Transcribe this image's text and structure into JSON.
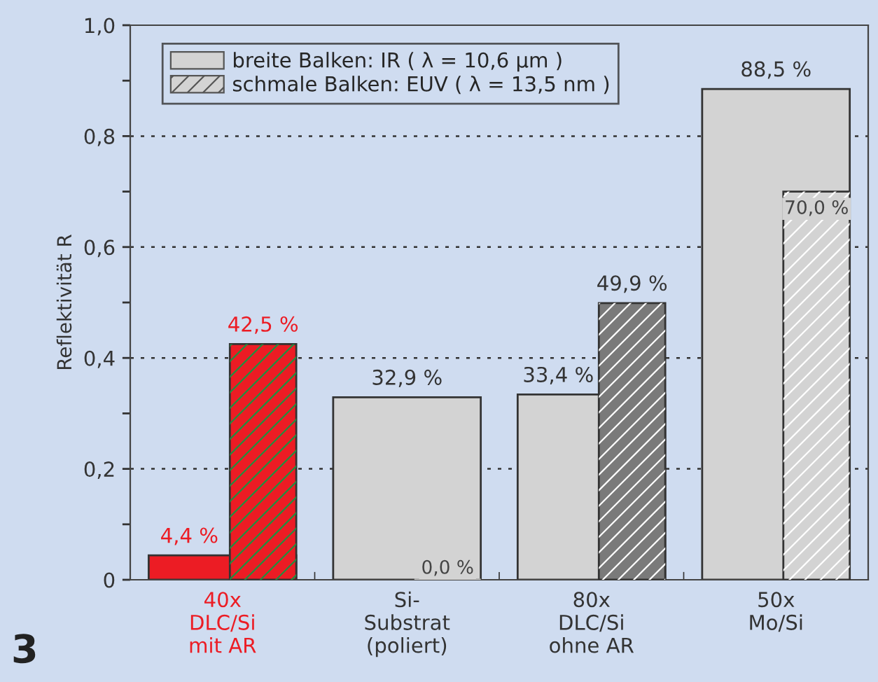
{
  "chart_data": {
    "type": "bar",
    "ylabel": "Reflektivität R",
    "categories": [
      "40x\nDLC/Si\nmit AR",
      "Si-\nSubstrat\n(poliert)",
      "80x\nDLC/Si\nohne AR",
      "50x\nMo/Si"
    ],
    "series": [
      {
        "name": "breite Balken: IR ( λ = 10,6 µm )",
        "color": "#d3d3d3",
        "colors": [
          "#ec1c24",
          "#d3d3d3",
          "#d3d3d3",
          "#d3d3d3"
        ],
        "values": [
          0.044,
          0.329,
          0.334,
          0.885
        ],
        "value_labels": [
          "4,4 %",
          "32,9 %",
          "33,4 %",
          "88,5 %"
        ]
      },
      {
        "name": "schmale Balken: EUV ( λ = 13,5 nm )",
        "color": "#d3d3d3",
        "colors": [
          "#ec1c24",
          "#d3d3d3",
          "#7a7a7a",
          "#d3d3d3"
        ],
        "values": [
          0.425,
          0.0,
          0.499,
          0.7
        ],
        "value_labels": [
          "42,5 %",
          "0,0 %",
          "49,9 %",
          "70,0 %"
        ]
      }
    ],
    "ylim": [
      0,
      1.0
    ],
    "yticks": [
      0,
      {
        "value": 0.1,
        "label": null
      },
      {
        "value": 0.2,
        "label": "0,2"
      },
      {
        "value": 0.3,
        "label": null
      },
      {
        "value": 0.4,
        "label": "0,4"
      },
      {
        "value": 0.5,
        "label": null
      },
      {
        "value": 0.6,
        "label": "0,6"
      },
      {
        "value": 0.7,
        "label": null
      },
      {
        "value": 0.8,
        "label": "0,8"
      },
      {
        "value": 0.9,
        "label": null
      },
      {
        "value": 1.0,
        "label": "1,0"
      }
    ],
    "grid": "y",
    "legend": "top left",
    "annotations": [
      "3"
    ]
  }
}
